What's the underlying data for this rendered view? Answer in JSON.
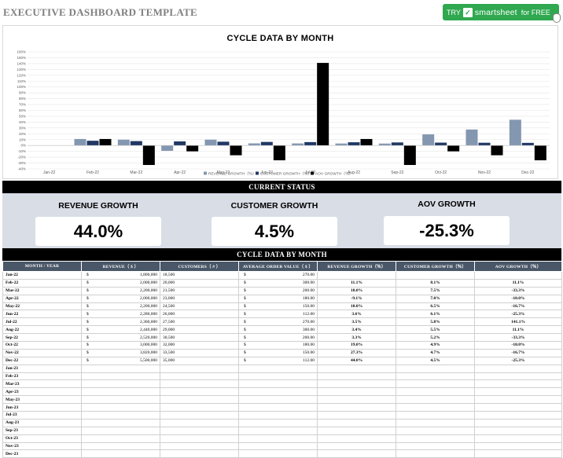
{
  "page_title": "EXECUTIVE DASHBOARD TEMPLATE",
  "cta": {
    "try": "TRY",
    "brand": "smartsheet",
    "suffix": "for FREE",
    "color": "#2fa84f"
  },
  "chart_data": {
    "type": "bar",
    "title": "CYCLE DATA BY MONTH",
    "categories": [
      "Jan-22",
      "Feb-22",
      "Mar-22",
      "Apr-22",
      "May-22",
      "Jun-22",
      "Jul-22",
      "Aug-22",
      "Sep-22",
      "Oct-22",
      "Nov-22",
      "Dec-22"
    ],
    "y_ticks": [
      "160%",
      "150%",
      "140%",
      "130%",
      "120%",
      "110%",
      "100%",
      "90%",
      "80%",
      "70%",
      "60%",
      "50%",
      "40%",
      "30%",
      "20%",
      "10%",
      "0%",
      "-10%",
      "-20%",
      "-30%",
      "-40%"
    ],
    "ylim": [
      -40,
      160
    ],
    "legend_position": "bottom",
    "series": [
      {
        "name": "REVENUE GROWTH（％）",
        "color": "#8497b0",
        "values": [
          null,
          11.1,
          10.0,
          -9.1,
          10.0,
          3.6,
          3.5,
          3.4,
          3.3,
          19.0,
          27.3,
          44.0
        ]
      },
      {
        "name": "CUSTOMER GROWTH（％）",
        "color": "#203864",
        "values": [
          null,
          8.1,
          7.5,
          7.0,
          6.5,
          6.1,
          5.8,
          5.5,
          5.2,
          4.9,
          4.7,
          4.5
        ]
      },
      {
        "name": "AOV GROWTH（％）",
        "color": "#000000",
        "values": [
          null,
          11.1,
          -33.3,
          -10.0,
          -16.7,
          -25.3,
          141.1,
          11.1,
          -33.3,
          -10.0,
          -16.7,
          -25.3
        ]
      }
    ]
  },
  "status": {
    "header": "CURRENT STATUS",
    "kpis": [
      {
        "label": "REVENUE GROWTH",
        "value": "44.0%"
      },
      {
        "label": "CUSTOMER GROWTH",
        "value": "4.5%"
      },
      {
        "label": "AOV GROWTH",
        "value": "-25.3%"
      }
    ]
  },
  "table": {
    "header": "CYCLE DATA BY MONTH",
    "currency_symbol": "$",
    "columns": [
      "MONTH / YEAR",
      "REVENUE（ $ ）",
      "CUSTOMERS（ # ）",
      "AVERAGE ORDER VALUE（ $ ）",
      "REVENUE GROWTH（％）",
      "CUSTOMER GROWTH（％）",
      "AOV GROWTH（％）"
    ],
    "rows": [
      [
        "Jan-22",
        "1,800,000",
        "18,500",
        "270.00",
        "",
        "",
        ""
      ],
      [
        "Feb-22",
        "2,000,000",
        "20,000",
        "300.00",
        "11.1%",
        "8.1%",
        "11.1%"
      ],
      [
        "Mar-22",
        "2,200,000",
        "21,500",
        "200.00",
        "10.0%",
        "7.5%",
        "-33.3%"
      ],
      [
        "Apr-22",
        "2,000,000",
        "23,000",
        "180.00",
        "-9.1%",
        "7.0%",
        "-10.0%"
      ],
      [
        "May-22",
        "2,200,000",
        "24,500",
        "150.00",
        "10.0%",
        "6.5%",
        "-16.7%"
      ],
      [
        "Jun-22",
        "2,280,000",
        "26,000",
        "112.00",
        "3.6%",
        "6.1%",
        "-25.3%"
      ],
      [
        "Jul-22",
        "2,360,000",
        "27,500",
        "270.00",
        "3.5%",
        "5.8%",
        "141.1%"
      ],
      [
        "Aug-22",
        "2,440,000",
        "29,000",
        "300.00",
        "3.4%",
        "5.5%",
        "11.1%"
      ],
      [
        "Sep-22",
        "2,520,000",
        "30,500",
        "200.00",
        "3.3%",
        "5.2%",
        "-33.3%"
      ],
      [
        "Oct-22",
        "3,000,000",
        "32,000",
        "180.00",
        "19.0%",
        "4.9%",
        "-10.0%"
      ],
      [
        "Nov-22",
        "3,820,000",
        "33,500",
        "150.00",
        "27.3%",
        "4.7%",
        "-16.7%"
      ],
      [
        "Dec-22",
        "5,500,000",
        "35,000",
        "112.00",
        "44.0%",
        "4.5%",
        "-25.3%"
      ],
      [
        "Jan-23",
        "",
        "",
        "",
        "",
        "",
        ""
      ],
      [
        "Feb-23",
        "",
        "",
        "",
        "",
        "",
        ""
      ],
      [
        "Mar-23",
        "",
        "",
        "",
        "",
        "",
        ""
      ],
      [
        "Apr-23",
        "",
        "",
        "",
        "",
        "",
        ""
      ],
      [
        "May-23",
        "",
        "",
        "",
        "",
        "",
        ""
      ],
      [
        "Jun-23",
        "",
        "",
        "",
        "",
        "",
        ""
      ],
      [
        "Jul-23",
        "",
        "",
        "",
        "",
        "",
        ""
      ],
      [
        "Aug-23",
        "",
        "",
        "",
        "",
        "",
        ""
      ],
      [
        "Sep-23",
        "",
        "",
        "",
        "",
        "",
        ""
      ],
      [
        "Oct-23",
        "",
        "",
        "",
        "",
        "",
        ""
      ],
      [
        "Nov-23",
        "",
        "",
        "",
        "",
        "",
        ""
      ],
      [
        "Dec-23",
        "",
        "",
        "",
        "",
        "",
        ""
      ]
    ]
  }
}
